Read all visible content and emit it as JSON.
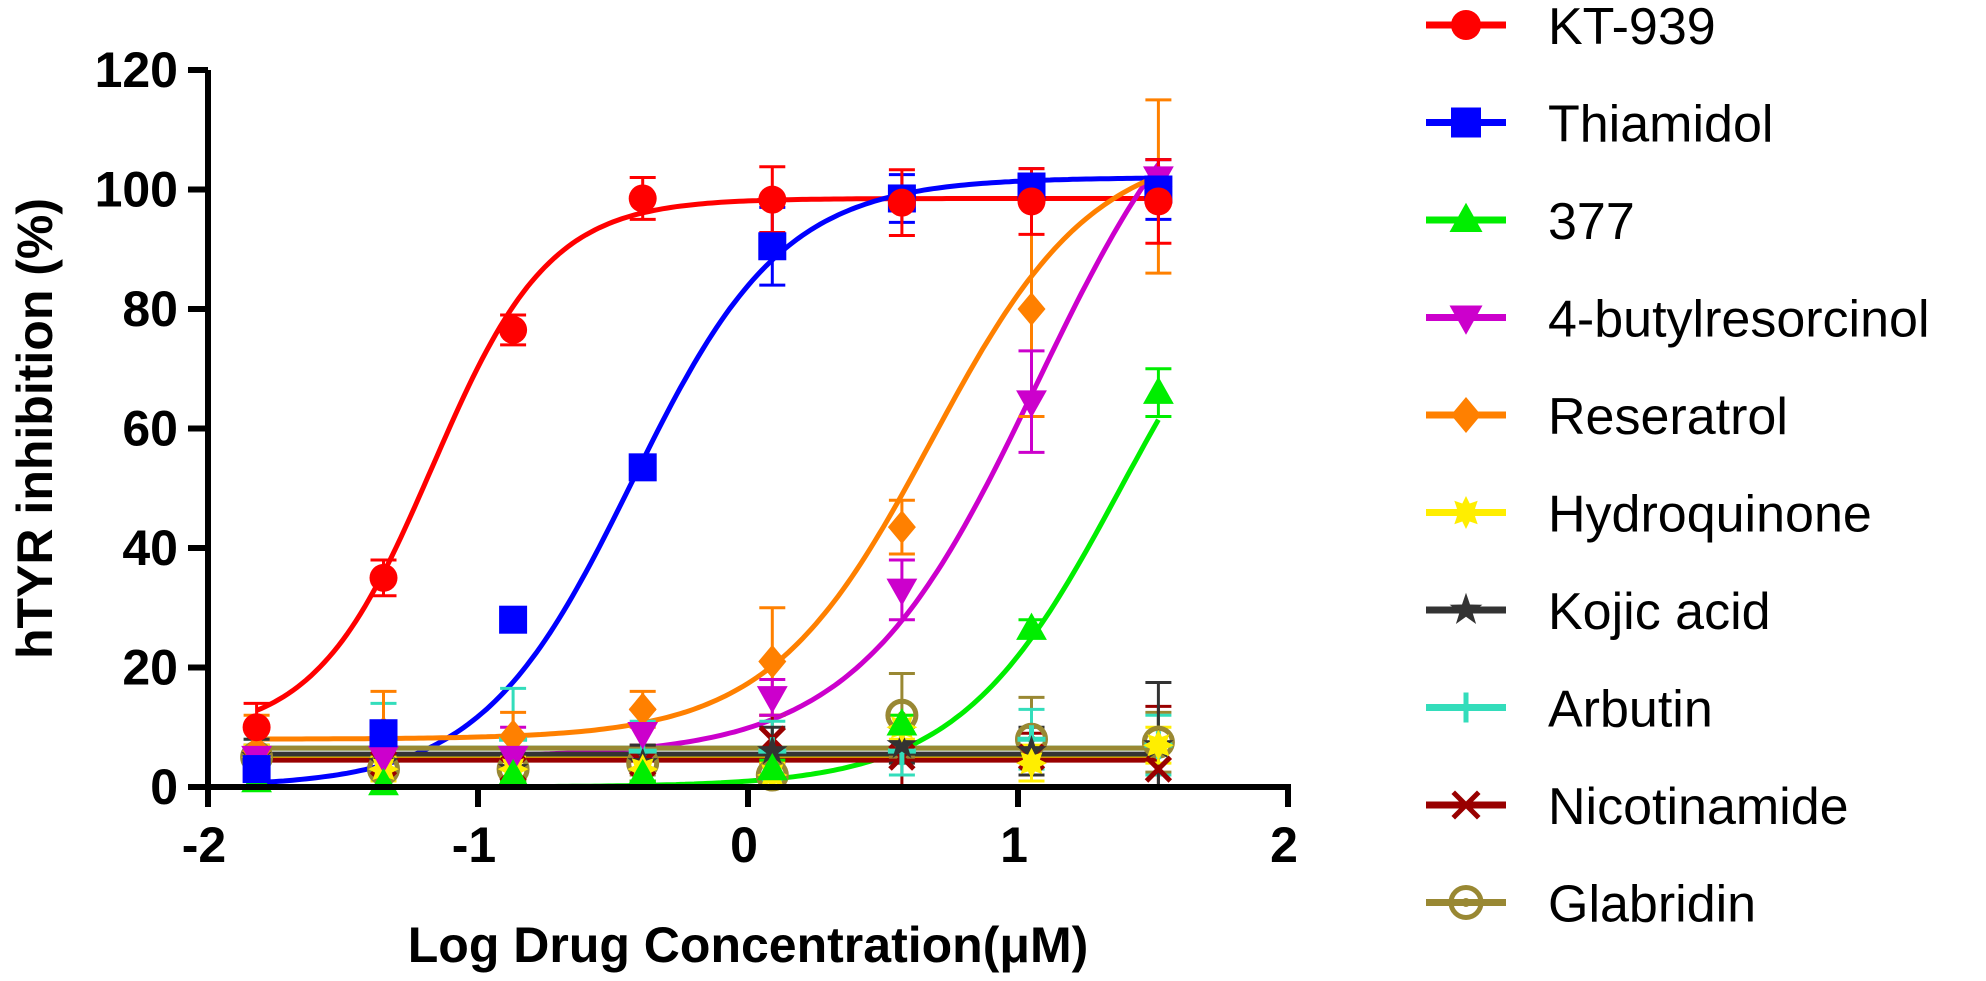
{
  "chart_data": {
    "type": "line",
    "xlabel": "Log Drug Concentration(μM)",
    "ylabel": "hTYR inhibition (%)",
    "xlim": [
      -2,
      2
    ],
    "ylim": [
      0,
      120
    ],
    "xticks": [
      "-2",
      "-1",
      "0",
      "1",
      "2"
    ],
    "yticks": [
      "0",
      "20",
      "40",
      "60",
      "80",
      "100",
      "120"
    ],
    "grid": false,
    "legend_position": "right",
    "series": [
      {
        "name": "KT-939",
        "color": "#ff0000",
        "marker": "circle",
        "x": [
          -1.82,
          -1.35,
          -0.87,
          -0.39,
          0.09,
          0.57,
          1.05,
          1.52
        ],
        "y": [
          10,
          35,
          76.5,
          98.5,
          98.3,
          97.8,
          98,
          98
        ],
        "err": [
          4,
          3,
          2.5,
          3.5,
          5.5,
          5.5,
          5.5,
          7
        ]
      },
      {
        "name": "Thiamidol",
        "color": "#0000ff",
        "marker": "square",
        "x": [
          -1.82,
          -1.35,
          -0.87,
          -0.39,
          0.09,
          0.57,
          1.05,
          1.52
        ],
        "y": [
          3,
          9,
          28,
          53.5,
          90.5,
          98.5,
          100.5,
          100
        ],
        "err": [
          2,
          2,
          1.5,
          2,
          6.5,
          4,
          3,
          5
        ]
      },
      {
        "name": "377",
        "color": "#00ee00",
        "marker": "triangle-up",
        "x": [
          -1.82,
          -1.35,
          -0.87,
          -0.39,
          0.09,
          0.57,
          1.05,
          1.52
        ],
        "y": [
          1,
          0.5,
          2,
          2,
          3,
          10.5,
          26.5,
          66
        ],
        "err": [
          1,
          1,
          1,
          1,
          1.5,
          1.5,
          1.5,
          4
        ]
      },
      {
        "name": "4-butylresorcinol",
        "color": "#cc00cc",
        "marker": "triangle-down",
        "x": [
          -1.82,
          -1.35,
          -0.87,
          -0.39,
          0.09,
          0.57,
          1.05,
          1.52
        ],
        "y": [
          5,
          5,
          5,
          9,
          15,
          33,
          64.5,
          102
        ],
        "err": [
          5,
          5,
          5,
          4,
          3,
          5,
          8.5,
          3
        ]
      },
      {
        "name": "Reseratrol",
        "color": "#ff8000",
        "marker": "diamond",
        "x": [
          -1.82,
          -1.35,
          -0.87,
          -0.39,
          0.09,
          0.57,
          1.05,
          1.52
        ],
        "y": [
          6,
          9,
          8.5,
          13,
          21,
          43.5,
          80,
          100.5
        ],
        "err": [
          6,
          7,
          4,
          3,
          9,
          4.5,
          18,
          14.5
        ]
      },
      {
        "name": "Hydroquinone",
        "color": "#ffee00",
        "marker": "burst",
        "x": [
          -1.82,
          -1.35,
          -0.87,
          -0.39,
          0.09,
          0.57,
          1.05,
          1.52
        ],
        "y": [
          5,
          3,
          3,
          3,
          2,
          10,
          4,
          7
        ],
        "err": [
          2,
          2,
          2,
          2,
          2,
          2,
          3,
          3
        ]
      },
      {
        "name": "Kojic acid",
        "color": "#333333",
        "marker": "star",
        "x": [
          -1.82,
          -1.35,
          -0.87,
          -0.39,
          0.09,
          0.57,
          1.05,
          1.52
        ],
        "y": [
          5,
          4,
          3,
          4,
          6,
          7,
          6,
          7
        ],
        "err": [
          3,
          3,
          2,
          3,
          4,
          3,
          4,
          10.5
        ]
      },
      {
        "name": "Arbutin",
        "color": "#33ddbb",
        "marker": "plus",
        "x": [
          -1.82,
          -1.35,
          -0.87,
          -0.39,
          0.09,
          0.57,
          1.05,
          1.52
        ],
        "y": [
          4,
          8,
          8,
          6,
          6,
          6,
          8,
          7
        ],
        "err": [
          4,
          6,
          8.5,
          5,
          5,
          4,
          5,
          5
        ]
      },
      {
        "name": "Nicotinamide",
        "color": "#990000",
        "marker": "x",
        "x": [
          -1.82,
          -1.35,
          -0.87,
          -0.39,
          0.09,
          0.57,
          1.05,
          1.52
        ],
        "y": [
          4,
          4,
          3,
          4,
          8,
          5,
          5,
          3
        ],
        "err": [
          3,
          3,
          2,
          3,
          4,
          5,
          4,
          10.5
        ]
      },
      {
        "name": "Glabridin",
        "color": "#998833",
        "marker": "circle-open",
        "x": [
          -1.82,
          -1.35,
          -0.87,
          -0.39,
          0.09,
          0.57,
          1.05,
          1.52
        ],
        "y": [
          5,
          3,
          3,
          4,
          2,
          12,
          8,
          7.5
        ],
        "err": [
          2,
          2,
          2,
          2,
          2,
          7,
          7,
          5
        ]
      }
    ],
    "fits": [
      {
        "series": "KT-939",
        "bottom": 8.5,
        "top": 98.5,
        "logEC50": -1.17,
        "hill": 2.0
      },
      {
        "series": "Thiamidol",
        "bottom": 0,
        "top": 102,
        "logEC50": -0.43,
        "hill": 1.55
      },
      {
        "series": "377",
        "bottom": 0,
        "top": 100,
        "logEC50": 1.38,
        "hill": 1.45
      },
      {
        "series": "4-butylresorcinol",
        "bottom": 5,
        "top": 130,
        "logEC50": 1.07,
        "hill": 1.3
      },
      {
        "series": "Reseratrol",
        "bottom": 8,
        "top": 108,
        "logEC50": 0.68,
        "hill": 1.45
      },
      {
        "series": "Hydroquinone",
        "flat": 5
      },
      {
        "series": "Kojic acid",
        "flat": 5.5
      },
      {
        "series": "Arbutin",
        "flat": 6.5
      },
      {
        "series": "Nicotinamide",
        "flat": 4.5
      },
      {
        "series": "Glabridin",
        "flat": 6.5
      }
    ]
  }
}
